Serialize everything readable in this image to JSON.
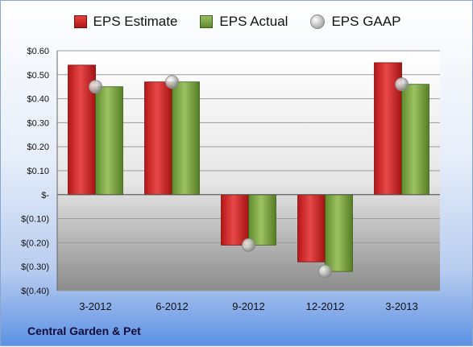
{
  "company": "Central Garden & Pet",
  "colors": {
    "estimate": "#cc2222",
    "actual": "#7aa644",
    "gaap": "#b5b5b5"
  },
  "chart_data": {
    "type": "bar",
    "categories": [
      "3-2012",
      "6-2012",
      "9-2012",
      "12-2012",
      "3-2013"
    ],
    "series": [
      {
        "name": "EPS Estimate",
        "type": "bar",
        "values": [
          0.54,
          0.47,
          -0.21,
          -0.28,
          0.55
        ]
      },
      {
        "name": "EPS Actual",
        "type": "bar",
        "values": [
          0.45,
          0.47,
          -0.21,
          -0.32,
          0.46
        ]
      },
      {
        "name": "EPS GAAP",
        "type": "scatter",
        "values": [
          0.45,
          0.47,
          -0.21,
          -0.32,
          0.46
        ]
      }
    ],
    "ylim": [
      -0.4,
      0.6
    ],
    "yticks": [
      0.6,
      0.5,
      0.4,
      0.3,
      0.2,
      0.1,
      0.0,
      -0.1,
      -0.2,
      -0.3,
      -0.4
    ],
    "ytick_labels": [
      "$0.60",
      "$0.50",
      "$0.40",
      "$0.30",
      "$0.20",
      "$0.10",
      "$-",
      "$(0.10)",
      "$(0.20)",
      "$(0.30)",
      "$(0.40)"
    ],
    "grid": true,
    "legend_position": "top"
  }
}
